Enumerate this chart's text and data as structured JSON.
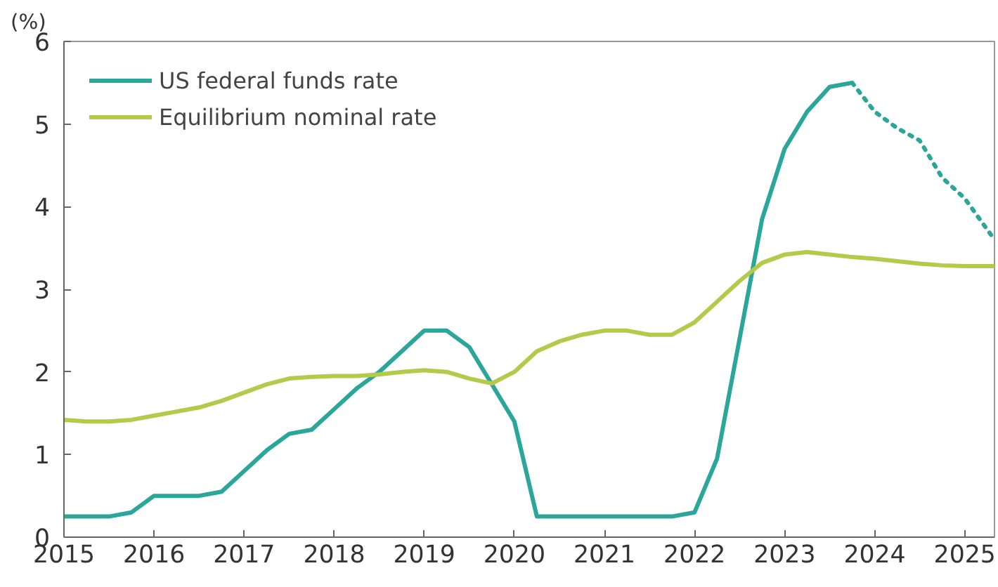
{
  "chart_data": {
    "type": "line",
    "ylabel": "(%)",
    "xlim": [
      2015,
      2025.33
    ],
    "xticks": [
      2015,
      2016,
      2017,
      2018,
      2019,
      2020,
      2021,
      2022,
      2023,
      2024,
      2025
    ],
    "ylim": [
      0,
      6
    ],
    "yticks": [
      0,
      1,
      2,
      3,
      4,
      5,
      6
    ],
    "grid": false,
    "legend": "top left",
    "marker": "none",
    "line_style": "solid",
    "series": [
      {
        "name": "US federal funds rate",
        "color": "#2aa69a",
        "x": [
          2015,
          2015.25,
          2015.5,
          2015.75,
          2016,
          2016.25,
          2016.5,
          2016.75,
          2017,
          2017.25,
          2017.5,
          2017.75,
          2018,
          2018.25,
          2018.5,
          2018.75,
          2019,
          2019.25,
          2019.5,
          2019.75,
          2020,
          2020.25,
          2020.5,
          2020.75,
          2021,
          2021.25,
          2021.5,
          2021.75,
          2022,
          2022.25,
          2022.5,
          2022.75,
          2023,
          2023.25,
          2023.5,
          2023.75
        ],
        "values": [
          0.25,
          0.25,
          0.25,
          0.3,
          0.5,
          0.5,
          0.5,
          0.55,
          0.8,
          1.05,
          1.25,
          1.3,
          1.55,
          1.8,
          2.0,
          2.25,
          2.5,
          2.5,
          2.3,
          1.85,
          1.4,
          0.25,
          0.25,
          0.25,
          0.25,
          0.25,
          0.25,
          0.25,
          0.3,
          0.95,
          2.4,
          3.85,
          4.7,
          5.15,
          5.45,
          5.5
        ]
      },
      {
        "color": "#2aa69a",
        "line_style": "dotted",
        "x": [
          2023.75,
          2024,
          2024.25,
          2024.5,
          2024.75,
          2025,
          2025.33
        ],
        "values": [
          5.5,
          5.15,
          4.95,
          4.8,
          4.35,
          4.1,
          3.6
        ]
      },
      {
        "name": "Equilibrium nominal rate",
        "color": "#b5c94a",
        "x": [
          2015,
          2015.25,
          2015.5,
          2015.75,
          2016,
          2016.25,
          2016.5,
          2016.75,
          2017,
          2017.25,
          2017.5,
          2017.75,
          2018,
          2018.25,
          2018.5,
          2018.75,
          2019,
          2019.25,
          2019.5,
          2019.75,
          2020,
          2020.25,
          2020.5,
          2020.75,
          2021,
          2021.25,
          2021.5,
          2021.75,
          2022,
          2022.25,
          2022.5,
          2022.75,
          2023,
          2023.25,
          2023.5,
          2023.75,
          2024,
          2024.25,
          2024.5,
          2024.75,
          2025,
          2025.33
        ],
        "values": [
          1.42,
          1.4,
          1.4,
          1.42,
          1.47,
          1.52,
          1.57,
          1.65,
          1.75,
          1.85,
          1.92,
          1.94,
          1.95,
          1.95,
          1.97,
          2.0,
          2.02,
          2.0,
          1.92,
          1.86,
          2.0,
          2.25,
          2.37,
          2.45,
          2.5,
          2.5,
          2.45,
          2.45,
          2.6,
          2.85,
          3.1,
          3.32,
          3.42,
          3.45,
          3.42,
          3.39,
          3.37,
          3.34,
          3.31,
          3.29,
          3.28,
          3.28
        ]
      }
    ]
  }
}
